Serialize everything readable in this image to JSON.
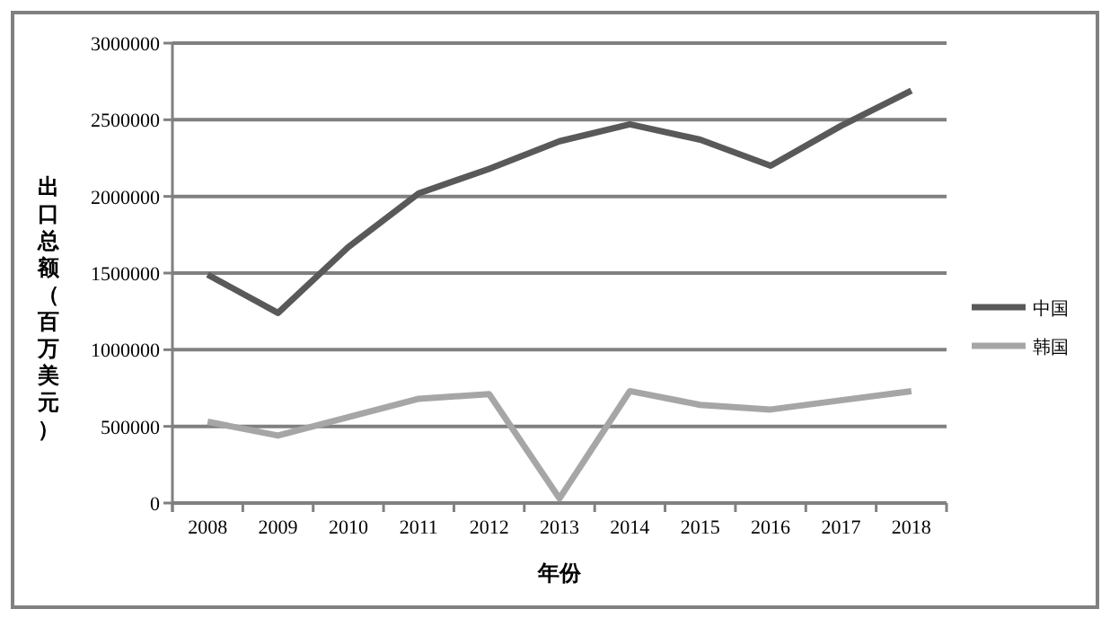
{
  "chart_data": {
    "type": "line",
    "xlabel": "年份",
    "ylabel": "出口总额（百万美元）",
    "categories": [
      "2008",
      "2009",
      "2010",
      "2011",
      "2012",
      "2013",
      "2014",
      "2015",
      "2016",
      "2017",
      "2018"
    ],
    "series": [
      {
        "name": "中国",
        "color": "#595959",
        "values": [
          1490000,
          1240000,
          1670000,
          2020000,
          2180000,
          2360000,
          2470000,
          2370000,
          2200000,
          2460000,
          2690000
        ]
      },
      {
        "name": "韩国",
        "color": "#a6a6a6",
        "values": [
          530000,
          440000,
          560000,
          680000,
          710000,
          30000,
          730000,
          640000,
          610000,
          670000,
          730000
        ]
      }
    ],
    "ylim": [
      0,
      3000000
    ],
    "yticks": [
      0,
      500000,
      1000000,
      1500000,
      2000000,
      2500000,
      3000000
    ],
    "grid": "y",
    "legend": "right",
    "marker": "none",
    "line_style": "solid"
  }
}
